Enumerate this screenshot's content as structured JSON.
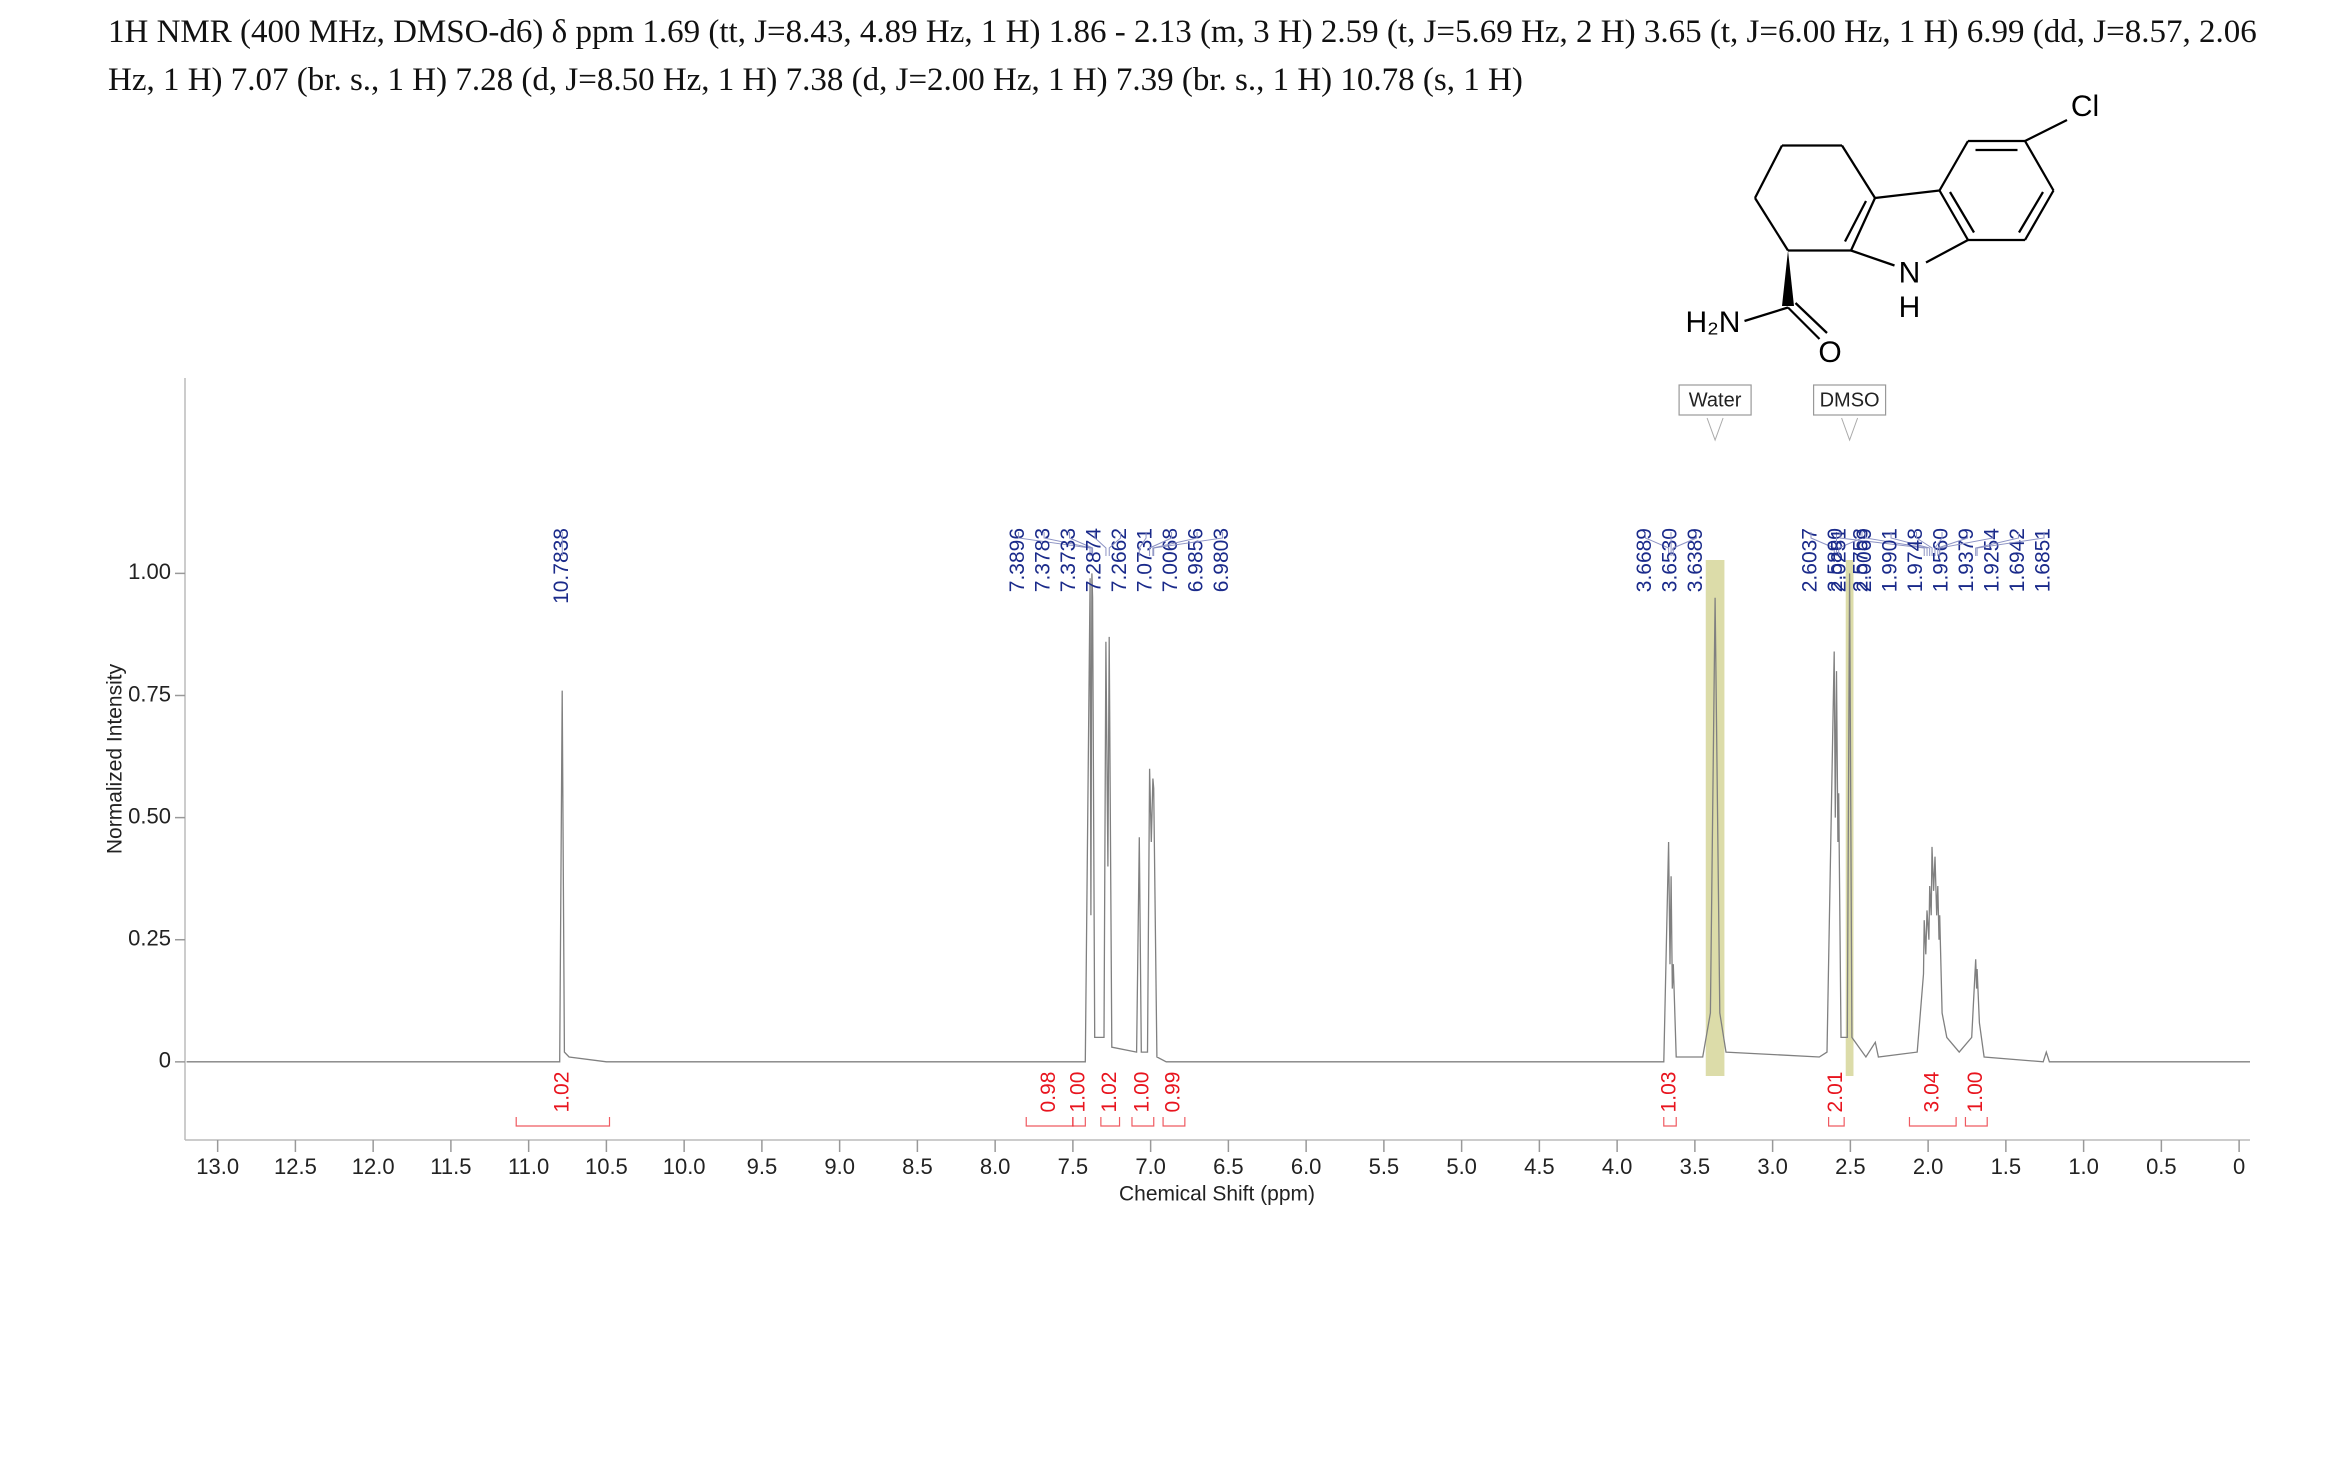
{
  "chart_data": {
    "type": "line",
    "title": "1H NMR (400 MHz, DMSO-d6) δ ppm 1.69 (tt, J=8.43, 4.89 Hz, 1 H) 1.86 - 2.13 (m, 3 H) 2.59 (t, J=5.69 Hz, 2 H) 3.65 (t, J=6.00 Hz, 1 H) 6.99 (dd, J=8.57, 2.06 Hz, 1 H) 7.07 (br. s., 1 H) 7.28 (d, J=8.50 Hz, 1 H) 7.38 (d, J=2.00 Hz, 1 H) 7.39 (br. s., 1 H) 10.78 (s, 1 H)",
    "x_label": "Chemical Shift (ppm)",
    "y_label": "Normalized Intensity",
    "color": "#808080",
    "peak_label_color": "#1a2a8a",
    "integral_color": "#e8141e",
    "region_color": "#d6d69a",
    "xlim": [
      13.21,
      -0.07
    ],
    "ylim": [
      -0.16,
      1.4
    ],
    "xticks": [
      {
        "value": 13,
        "label": "13.0"
      },
      {
        "value": 12.5,
        "label": "12.5"
      },
      {
        "value": 12,
        "label": "12.0"
      },
      {
        "value": 11.5,
        "label": "11.5"
      },
      {
        "value": 11,
        "label": "11.0"
      },
      {
        "value": 10.5,
        "label": "10.5"
      },
      {
        "value": 10,
        "label": "10.0"
      },
      {
        "value": 9.5,
        "label": "9.5"
      },
      {
        "value": 9,
        "label": "9.0"
      },
      {
        "value": 8.5,
        "label": "8.5"
      },
      {
        "value": 8,
        "label": "8.0"
      },
      {
        "value": 7.5,
        "label": "7.5"
      },
      {
        "value": 7,
        "label": "7.0"
      },
      {
        "value": 6.5,
        "label": "6.5"
      },
      {
        "value": 6,
        "label": "6.0"
      },
      {
        "value": 5.5,
        "label": "5.5"
      },
      {
        "value": 5,
        "label": "5.0"
      },
      {
        "value": 4.5,
        "label": "4.5"
      },
      {
        "value": 4,
        "label": "4.0"
      },
      {
        "value": 3.5,
        "label": "3.5"
      },
      {
        "value": 3,
        "label": "3.0"
      },
      {
        "value": 2.5,
        "label": "2.5"
      },
      {
        "value": 2,
        "label": "2.0"
      },
      {
        "value": 1.5,
        "label": "1.5"
      },
      {
        "value": 1,
        "label": "1.0"
      },
      {
        "value": 0.5,
        "label": "0.5"
      },
      0
    ],
    "yticks": [
      {
        "value": 1,
        "label": "1.00"
      },
      {
        "value": 0.75,
        "label": "0.75"
      },
      {
        "value": 0.5,
        "label": "0.50"
      },
      {
        "value": 0.25,
        "label": "0.25"
      },
      0
    ],
    "x": [
      13.2,
      10.8,
      10.784,
      10.77,
      10.74,
      10.5,
      7.42,
      7.3896,
      7.384,
      7.378,
      7.3733,
      7.36,
      7.3,
      7.2874,
      7.275,
      7.2662,
      7.25,
      7.09,
      7.0731,
      7.06,
      7.02,
      7.0068,
      6.996,
      6.9856,
      6.9803,
      6.96,
      6.9,
      3.7,
      3.6689,
      3.66,
      3.653,
      3.645,
      3.6389,
      3.62,
      3.45,
      3.4,
      3.37,
      3.34,
      3.3,
      2.7,
      2.65,
      2.6037,
      2.597,
      2.589,
      2.58,
      2.5753,
      2.56,
      2.52,
      2.505,
      2.49,
      2.4,
      2.34,
      2.32,
      2.07,
      2.03,
      2.0251,
      2.015,
      2.0069,
      1.995,
      1.9901,
      1.98,
      1.9748,
      1.965,
      1.956,
      1.945,
      1.9379,
      1.93,
      1.9254,
      1.91,
      1.88,
      1.8,
      1.72,
      1.6942,
      1.688,
      1.6851,
      1.67,
      1.64,
      1.26,
      1.24,
      1.22,
      -0.07
    ],
    "values": [
      0,
      0,
      0.76,
      0.02,
      0.01,
      0,
      0,
      0.99,
      0.3,
      1.0,
      0.95,
      0.05,
      0.05,
      0.86,
      0.4,
      0.87,
      0.03,
      0.02,
      0.46,
      0.02,
      0.02,
      0.6,
      0.45,
      0.58,
      0.56,
      0.01,
      0,
      0,
      0.45,
      0.2,
      0.38,
      0.15,
      0.2,
      0.01,
      0.01,
      0.1,
      0.95,
      0.1,
      0.02,
      0.01,
      0.02,
      0.84,
      0.5,
      0.8,
      0.45,
      0.55,
      0.05,
      0.05,
      1.0,
      0.05,
      0.01,
      0.04,
      0.01,
      0.02,
      0.18,
      0.29,
      0.22,
      0.31,
      0.25,
      0.36,
      0.3,
      0.44,
      0.35,
      0.42,
      0.3,
      0.36,
      0.25,
      0.3,
      0.1,
      0.05,
      0.02,
      0.05,
      0.21,
      0.15,
      0.19,
      0.08,
      0.01,
      0,
      0.02,
      0,
      0
    ],
    "peak_labels": [
      10.7838,
      7.3896,
      7.3783,
      7.3733,
      7.2874,
      7.2662,
      7.0731,
      7.0068,
      6.9856,
      6.9803,
      3.6689,
      {
        "value": 3.653,
        "label": "3.6530"
      },
      3.6389,
      2.6037,
      {
        "value": 2.589,
        "label": "2.5890"
      },
      2.5753,
      2.0251,
      2.0069,
      1.9901,
      1.9748,
      {
        "value": 1.956,
        "label": "1.9560"
      },
      1.9379,
      1.9254,
      1.6942,
      1.6851
    ],
    "integral_values": [
      1.02,
      0.98,
      {
        "value": 1,
        "label": "1.00"
      },
      1.02,
      {
        "value": 1,
        "label": "1.00"
      },
      0.99,
      1.03,
      2.01,
      3.04,
      {
        "value": 1,
        "label": "1.00"
      }
    ],
    "integral_ranges": [
      [
        11.08,
        10.48
      ],
      [
        7.8,
        7.5
      ],
      [
        7.5,
        7.42
      ],
      [
        7.32,
        7.2
      ],
      [
        7.12,
        6.98
      ],
      [
        6.92,
        6.78
      ],
      [
        3.7,
        3.62
      ],
      [
        2.64,
        2.54
      ],
      [
        2.12,
        1.82
      ],
      [
        1.76,
        1.62
      ]
    ],
    "regions": [
      {
        "label": "Water",
        "from": 3.43,
        "to": 3.31
      },
      {
        "label": "DMSO",
        "from": 2.53,
        "to": 2.48
      }
    ],
    "structure_labels": {
      "cl": "Cl",
      "n": "N",
      "nh": "H",
      "amine": "H₂N",
      "o": "O"
    }
  }
}
